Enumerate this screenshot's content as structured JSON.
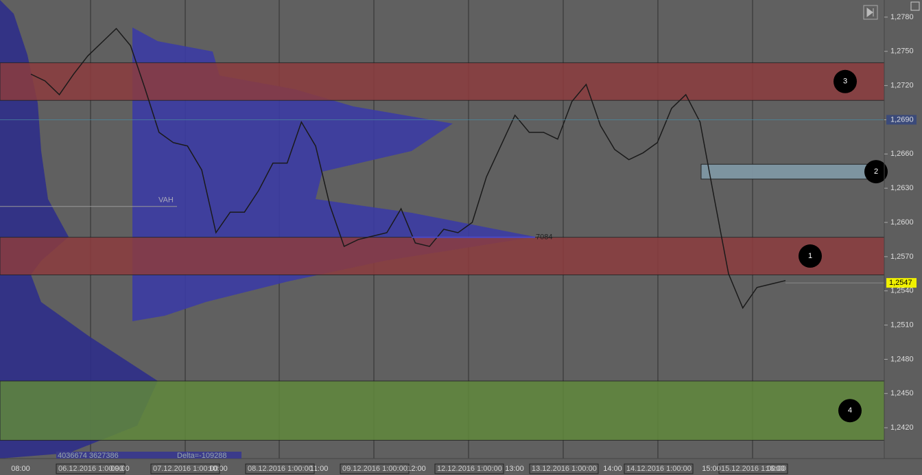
{
  "chart_data": {
    "type": "price-profile",
    "ylim": [
      1.2393,
      1.2795
    ],
    "yticks": [
      {
        "value": 1.278,
        "label": "1,2780"
      },
      {
        "value": 1.275,
        "label": "1,2750"
      },
      {
        "value": 1.272,
        "label": "1,2720"
      },
      {
        "value": 1.269,
        "label": "1,2690"
      },
      {
        "value": 1.266,
        "label": "1,2660"
      },
      {
        "value": 1.263,
        "label": "1,2630"
      },
      {
        "value": 1.26,
        "label": "1,2600"
      },
      {
        "value": 1.257,
        "label": "1,2570"
      },
      {
        "value": 1.254,
        "label": "1,2540"
      },
      {
        "value": 1.251,
        "label": "1,2510"
      },
      {
        "value": 1.248,
        "label": "1,2480"
      },
      {
        "value": 1.245,
        "label": "1,2450"
      },
      {
        "value": 1.242,
        "label": "1,2420"
      }
    ],
    "zones": [
      {
        "label": "3",
        "low": 1.2707,
        "high": 1.274,
        "color": "#8c3c3e"
      },
      {
        "label": "2",
        "low": 1.2638,
        "high": 1.2651,
        "color": "#7f97a4"
      },
      {
        "label": "1",
        "low": 1.2554,
        "high": 1.2587,
        "color": "#8c3c3e"
      },
      {
        "label": "4",
        "low": 1.2409,
        "high": 1.2461,
        "color": "#60883c"
      }
    ],
    "prices": [
      1.273,
      1.2724,
      1.2712,
      1.273,
      1.2746,
      1.2758,
      1.277,
      1.2755,
      1.2718,
      1.2679,
      1.267,
      1.2667,
      1.2646,
      1.2591,
      1.2609,
      1.2609,
      1.2628,
      1.2652,
      1.2652,
      1.2688,
      1.2667,
      1.2615,
      1.2579,
      1.2585,
      1.2588,
      1.2591,
      1.2612,
      1.2582,
      1.2579,
      1.2594,
      1.2591,
      1.26,
      1.264,
      1.2667,
      1.2694,
      1.2679,
      1.2679,
      1.2673,
      1.2706,
      1.2721,
      1.2685,
      1.2664,
      1.2655,
      1.2661,
      1.267,
      1.27,
      1.2712,
      1.2688,
      1.2621,
      1.2555,
      1.2525,
      1.2543,
      1.2546,
      1.2549
    ],
    "last_price": {
      "value": 1.2547,
      "label": "1,2547"
    },
    "marked_price": {
      "value": 1.269,
      "label": "1,2690"
    },
    "vah": {
      "value": 1.2614,
      "label": "VAH"
    },
    "poc": {
      "value": 1.2587,
      "label": "7084"
    },
    "times": [
      "08:00",
      "09:00",
      "10:00",
      "11:00",
      "12:00",
      "13:00",
      "14:00",
      "15:00",
      "16:00"
    ],
    "dates": [
      "06.12.2016 1:00:00",
      "07.12.2016 1:00:00",
      "08.12.2016 1:00:00",
      "09.12.2016 1:00:00",
      "12.12.2016 1:00:00",
      "13.12.2016 1:00:00",
      "14.12.2016 1:00:00",
      "15.12.2016 1:00:00"
    ],
    "volume_text": "4036674  3627386",
    "delta_text": "Delta=-109288"
  }
}
